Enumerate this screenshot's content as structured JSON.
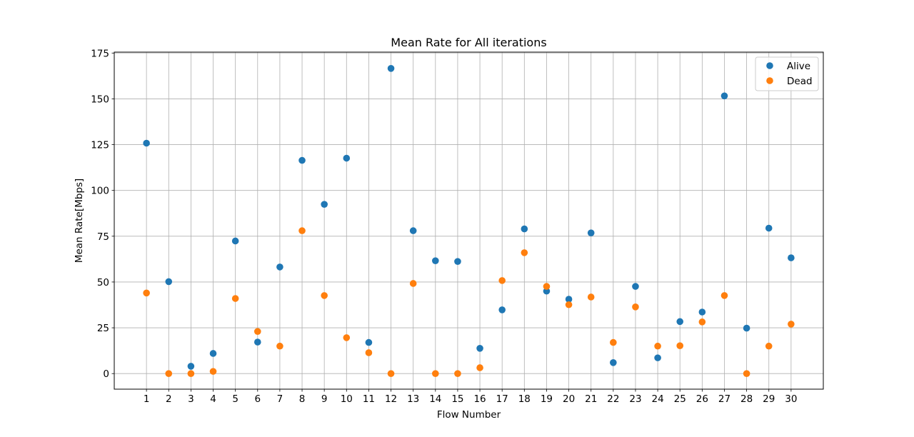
{
  "chart_data": {
    "type": "scatter",
    "title": "Mean Rate for All iterations",
    "xlabel": "Flow Number",
    "ylabel": "Mean Rate[Mbps]",
    "x": [
      1,
      2,
      3,
      4,
      5,
      6,
      7,
      8,
      9,
      10,
      11,
      12,
      13,
      14,
      15,
      16,
      17,
      18,
      19,
      20,
      21,
      22,
      23,
      24,
      25,
      26,
      27,
      28,
      29,
      30
    ],
    "xticks": [
      "1",
      "2",
      "3",
      "4",
      "5",
      "6",
      "7",
      "8",
      "9",
      "10",
      "11",
      "12",
      "13",
      "14",
      "15",
      "16",
      "17",
      "18",
      "19",
      "20",
      "21",
      "22",
      "23",
      "24",
      "25",
      "26",
      "27",
      "28",
      "29",
      "30"
    ],
    "yticks": [
      0,
      25,
      50,
      75,
      100,
      125,
      150,
      175
    ],
    "xlim": [
      -0.45,
      31.45
    ],
    "ylim": [
      -8.5,
      175.5
    ],
    "grid": true,
    "legend_position": "upper-right",
    "series": [
      {
        "name": "Alive",
        "color": "#1f77b4",
        "values": [
          125.8,
          50.2,
          4,
          11,
          72.4,
          17.2,
          58.2,
          116.4,
          92.4,
          117.6,
          17,
          166.6,
          78,
          61.6,
          61.2,
          13.8,
          34.8,
          79,
          45,
          40.6,
          76.8,
          6,
          47.6,
          8.6,
          28.4,
          33.6,
          151.6,
          24.8,
          79.4,
          63.2
        ]
      },
      {
        "name": "Dead",
        "color": "#ff7f0e",
        "values": [
          44,
          0,
          0,
          1.2,
          41,
          23,
          15,
          78,
          42.6,
          19.6,
          11.4,
          0,
          49.2,
          0,
          0,
          3.2,
          50.8,
          66,
          47.6,
          37.6,
          41.8,
          17,
          36.4,
          15,
          15.2,
          28.2,
          42.6,
          0,
          15,
          27
        ]
      }
    ]
  }
}
